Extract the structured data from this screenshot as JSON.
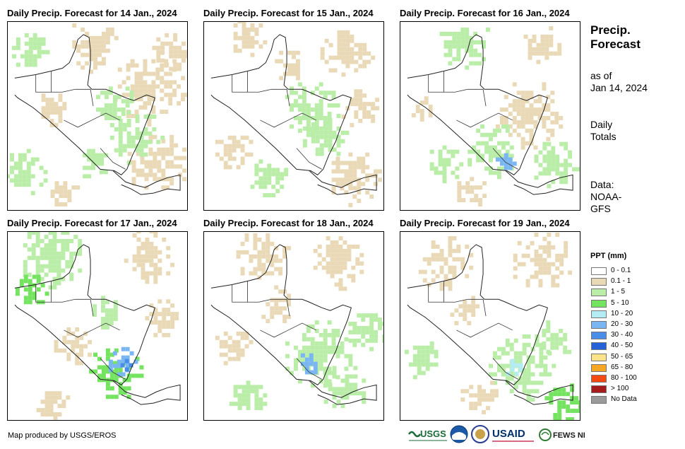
{
  "panels": [
    {
      "title": "Daily Precip. Forecast for 14 Jan., 2024"
    },
    {
      "title": "Daily Precip. Forecast for 15 Jan., 2024"
    },
    {
      "title": "Daily Precip. Forecast for 16 Jan., 2024"
    },
    {
      "title": "Daily Precip. Forecast for 17 Jan., 2024"
    },
    {
      "title": "Daily Precip. Forecast for 18 Jan., 2024"
    },
    {
      "title": "Daily Precip. Forecast for 19 Jan., 2024"
    }
  ],
  "side": {
    "title_line1": "Precip.",
    "title_line2": "Forecast",
    "asof_line1": "as of",
    "asof_line2": "Jan 14, 2024",
    "totals_line1": "Daily",
    "totals_line2": "Totals",
    "source_line1": "Data:",
    "source_line2": "NOAA-",
    "source_line3": "GFS"
  },
  "legend": {
    "title": "PPT (mm)",
    "items": [
      {
        "label": "0 - 0.1",
        "color": "#ffffff"
      },
      {
        "label": "0.1 - 1",
        "color": "#e9d9b7"
      },
      {
        "label": "1 - 5",
        "color": "#b9eda8"
      },
      {
        "label": "5 - 10",
        "color": "#74e35f"
      },
      {
        "label": "10 - 20",
        "color": "#b4ecf4"
      },
      {
        "label": "20 - 30",
        "color": "#7ab7f2"
      },
      {
        "label": "30 - 40",
        "color": "#4a8de8"
      },
      {
        "label": "40 - 50",
        "color": "#2563d6"
      },
      {
        "label": "50 - 65",
        "color": "#fbe38a"
      },
      {
        "label": "65 - 80",
        "color": "#f5a623"
      },
      {
        "label": "80 - 100",
        "color": "#f24a12"
      },
      {
        "label": "> 100",
        "color": "#a61b1b"
      },
      {
        "label": "No Data",
        "color": "#9a9a9a"
      }
    ]
  },
  "credit": "Map produced by USGS/EROS",
  "logos": {
    "usgs": "USGS",
    "usaid": "USAID",
    "fews": "FEWS NET"
  }
}
